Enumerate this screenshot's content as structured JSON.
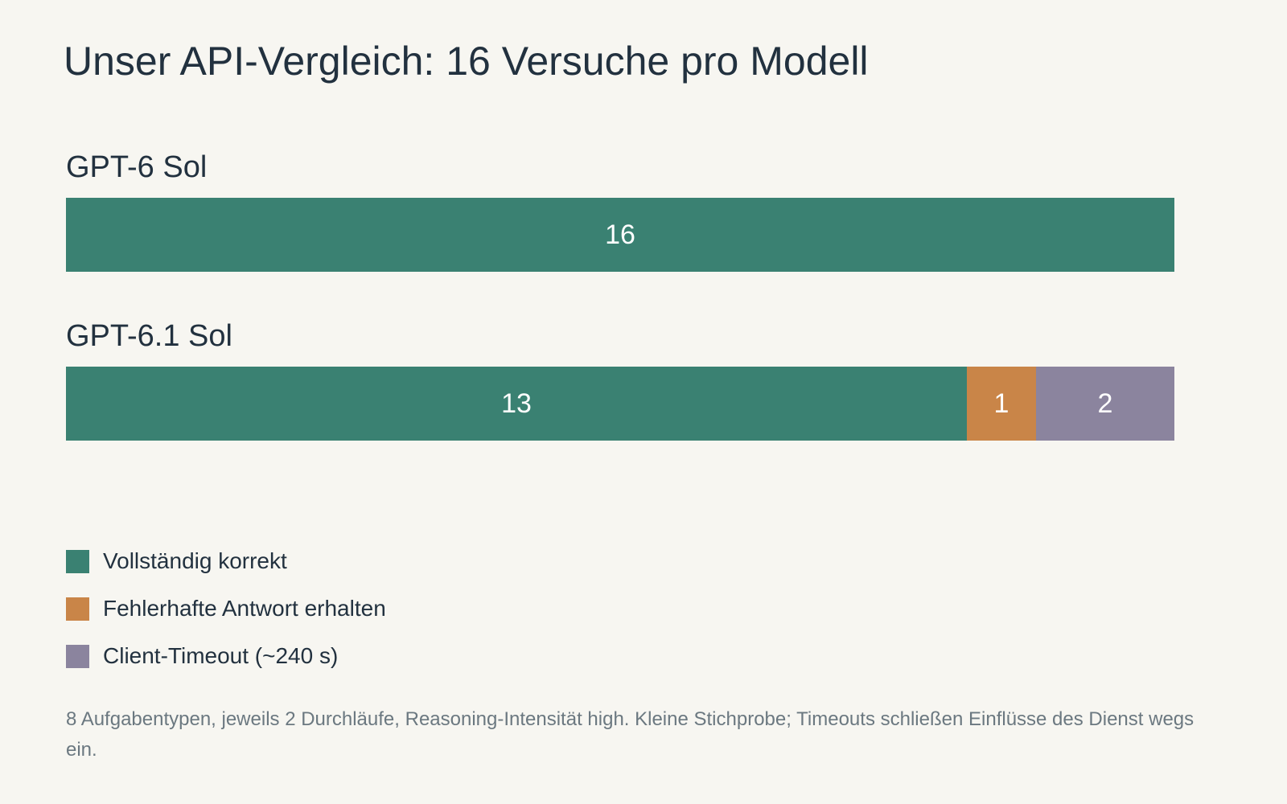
{
  "title": "Unser API-Vergleich: 16 Versuche pro Modell",
  "chart_data": {
    "type": "bar",
    "orientation": "horizontal",
    "stacked": true,
    "categories": [
      "GPT-6 Sol",
      "GPT-6.1 Sol"
    ],
    "series": [
      {
        "name": "Vollständig korrekt",
        "color": "#3a8172",
        "values": [
          16,
          13
        ]
      },
      {
        "name": "Fehlerhafte Antwort erhalten",
        "color": "#c98548",
        "values": [
          0,
          1
        ]
      },
      {
        "name": "Client-Timeout (~240 s)",
        "color": "#8b849e",
        "values": [
          0,
          2
        ]
      }
    ],
    "total_per_category": 16,
    "xlim": [
      0,
      16
    ],
    "grid": false,
    "legend": "bottom-left"
  },
  "footnote": "8 Aufgabentypen, jeweils 2 Durchläufe, Reasoning-Intensität high. Kleine Stichprobe; Timeouts schließen Einflüsse des Dienst wegs ein."
}
